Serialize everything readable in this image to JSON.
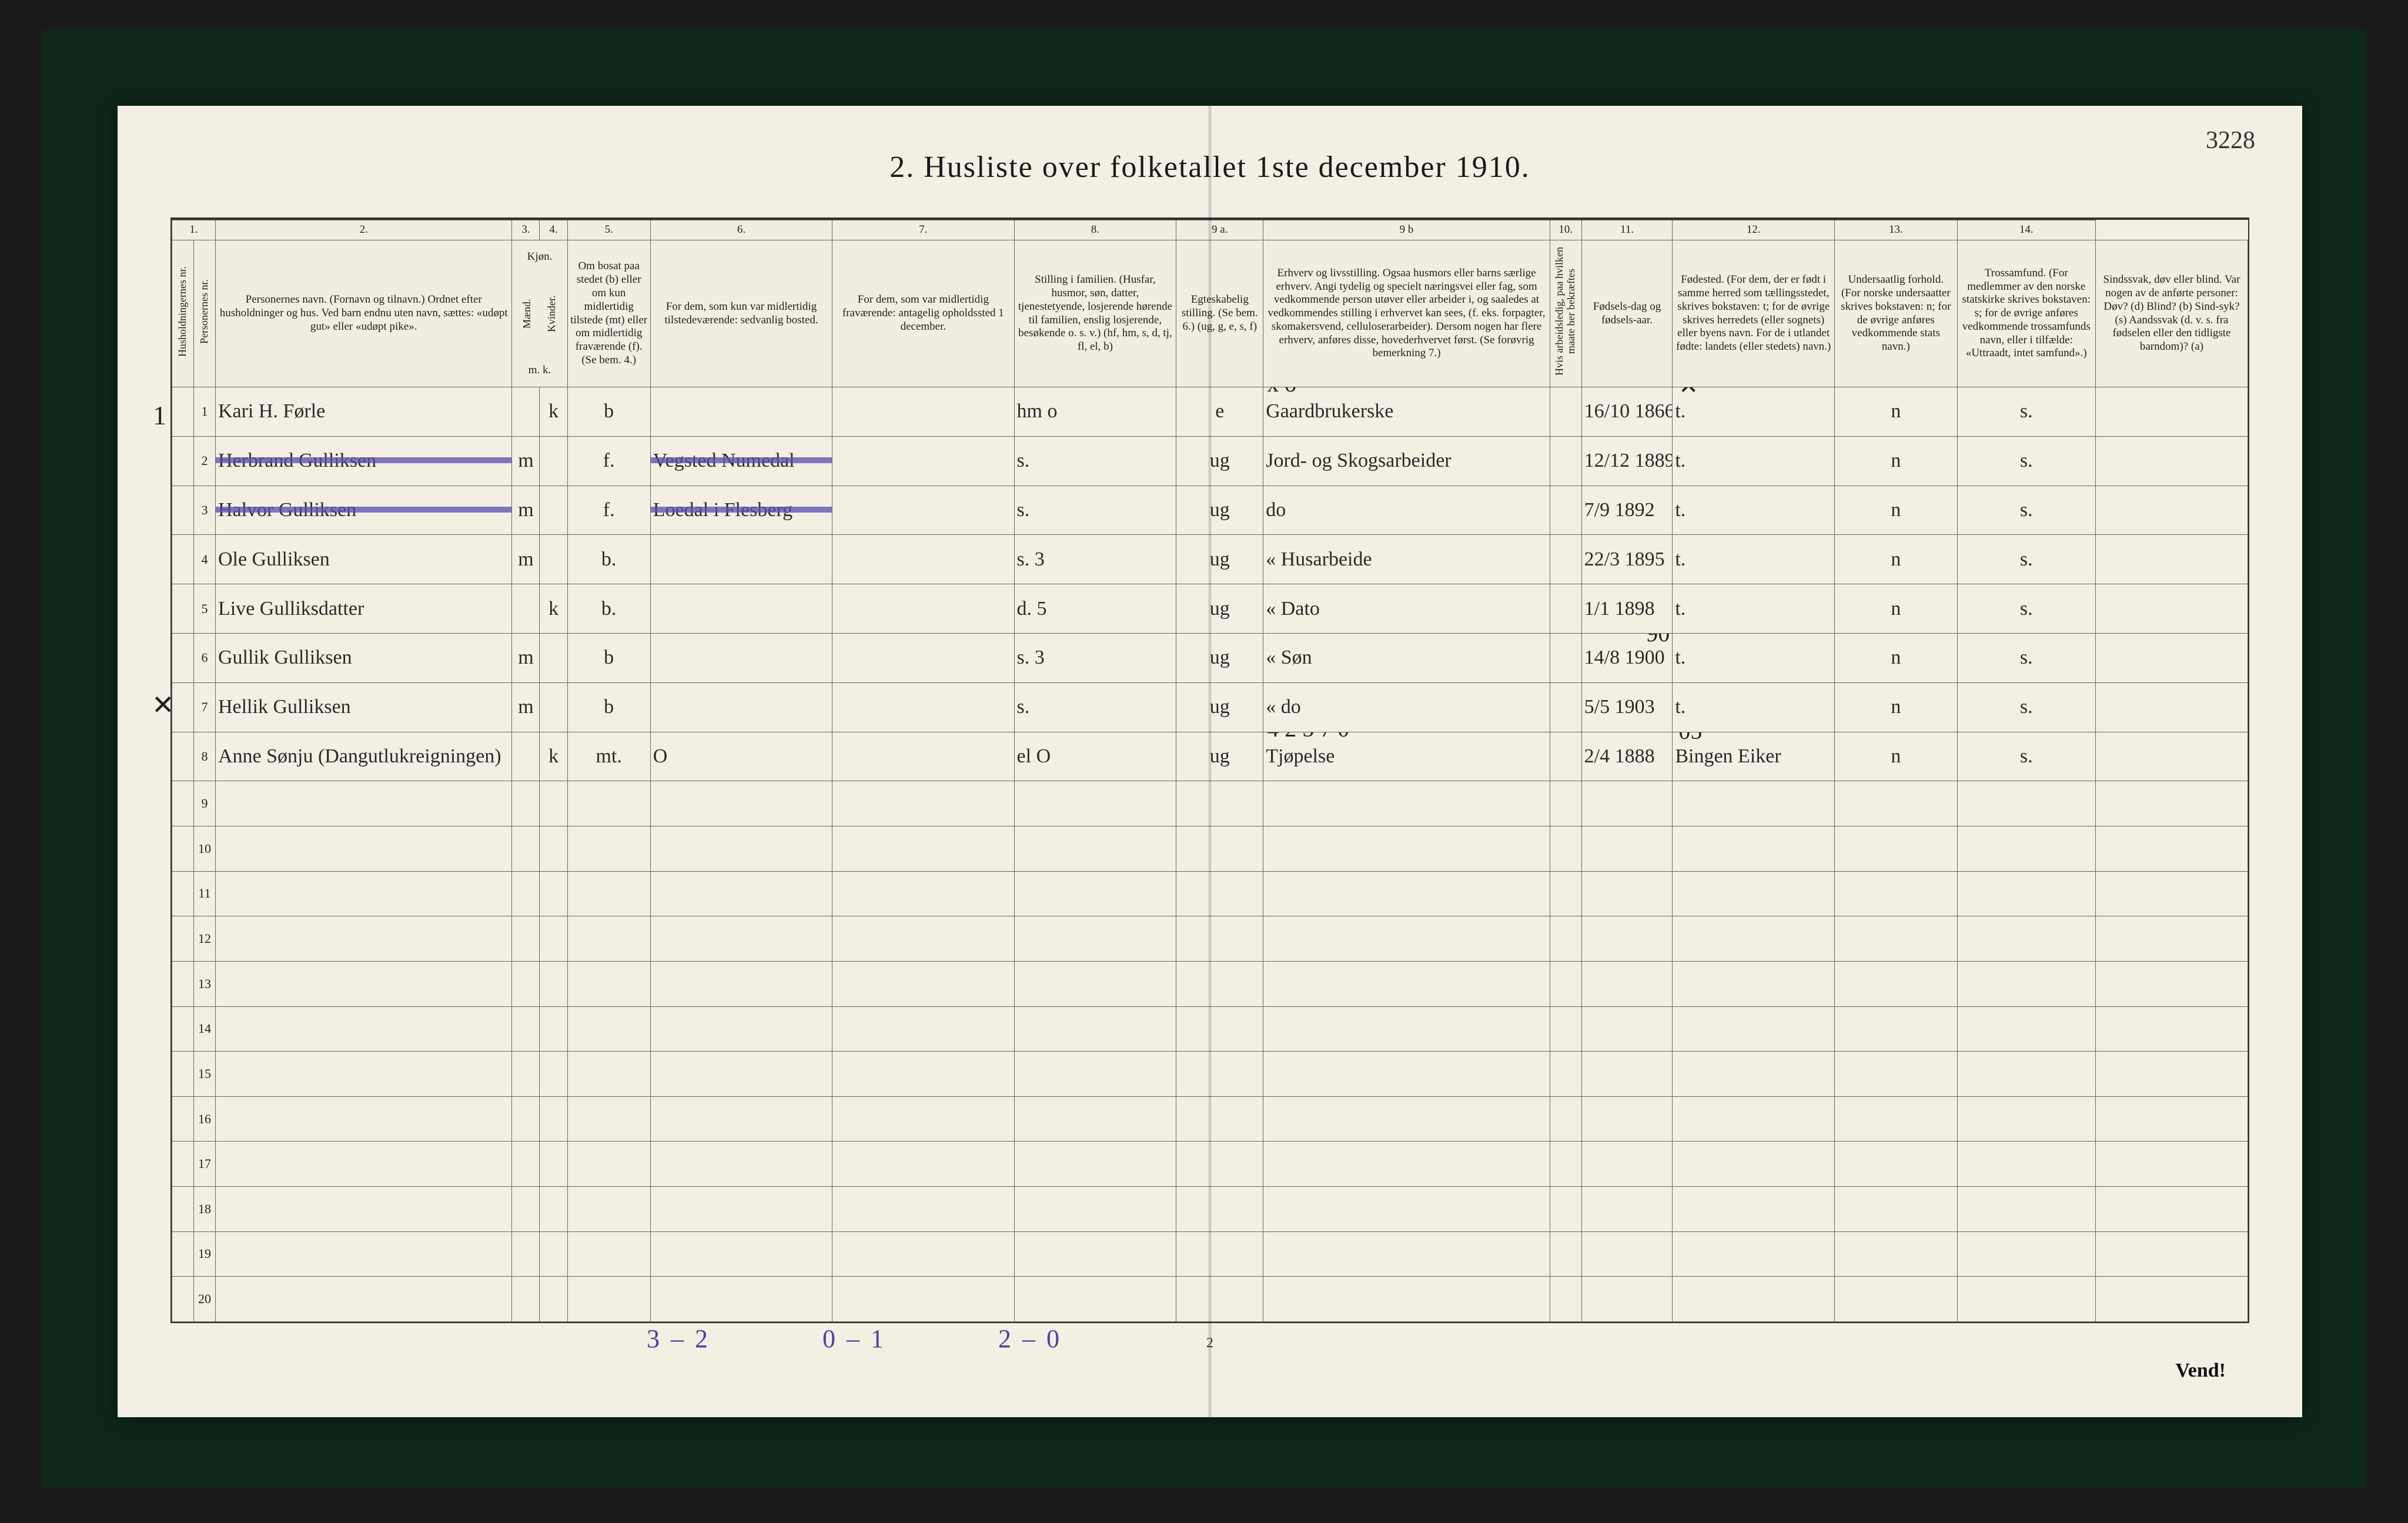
{
  "corner_number": "3228",
  "title": "2.  Husliste over folketallet 1ste december 1910.",
  "column_numbers": [
    "1.",
    "2.",
    "3.",
    "4.",
    "5.",
    "6.",
    "7.",
    "8.",
    "9 a.",
    "9 b",
    "10.",
    "11.",
    "12.",
    "13.",
    "14."
  ],
  "headers": {
    "c1a": "Husholdningernes nr.",
    "c1b": "Personernes nr.",
    "c2": "Personernes navn.\n(Fornavn og tilnavn.)\nOrdnet efter husholdninger og hus.\nVed barn endnu uten navn, sættes: «udøpt gut» eller «udøpt pike».",
    "c3": "Kjøn.",
    "c3a": "Mænd.",
    "c3b": "Kvinder.",
    "c3sub": "m.  k.",
    "c4": "Om bosat paa stedet (b) eller om kun midlertidig tilstede (mt) eller om midlertidig fraværende (f).\n(Se bem. 4.)",
    "c5": "For dem, som kun var midlertidig tilstedeværende:\nsedvanlig bosted.",
    "c6": "For dem, som var midlertidig fraværende:\nantagelig opholdssted 1 december.",
    "c7": "Stilling i familien.\n(Husfar, husmor, søn, datter, tjenestetyende, losjerende hørende til familien, enslig losjerende, besøkende o. s. v.)\n(hf, hm, s, d, tj, fl, el, b)",
    "c8": "Egteskabelig stilling.\n(Se bem. 6.)\n(ug, g, e, s, f)",
    "c9a": "Erhverv og livsstilling.\nOgsaa husmors eller barns særlige erhverv.\nAngi tydelig og specielt næringsvei eller fag, som vedkommende person utøver eller arbeider i, og saaledes at vedkommendes stilling i erhvervet kan sees, (f. eks. forpagter, skomakersvend, celluloserarbeider). Dersom nogen har flere erhverv, anføres disse, hovederhvervet først.\n(Se forøvrig bemerkning 7.)",
    "c9b": "Hvis arbeidsledig, paa hvilken maate her bekræftes",
    "c10": "Fødsels-dag og fødsels-aar.",
    "c11": "Fødested.\n(For dem, der er født i samme herred som tællingsstedet, skrives bokstaven: t; for de øvrige skrives herredets (eller sognets) eller byens navn. For de i utlandet fødte: landets (eller stedets) navn.)",
    "c12": "Undersaatlig forhold.\n(For norske undersaatter skrives bokstaven: n; for de øvrige anføres vedkommende stats navn.)",
    "c13": "Trossamfund.\n(For medlemmer av den norske statskirke skrives bokstaven: s; for de øvrige anføres vedkommende trossamfunds navn, eller i tilfælde: «Uttraadt, intet samfund».)",
    "c14": "Sindssvak, døv eller blind.\nVar nogen av de anførte personer:\nDøv? (d)\nBlind? (b)\nSind-syk? (s)\nAandssvak (d. v. s. fra fødselen eller den tidligste barndom)? (a)"
  },
  "col_widths": {
    "c1a": "1.1%",
    "c1b": "1.1%",
    "c2": "15%",
    "c3a": "1.4%",
    "c3b": "1.4%",
    "c4": "4.2%",
    "c5": "9.2%",
    "c6": "9.2%",
    "c7": "8.2%",
    "c8": "4.4%",
    "c9a": "14.5%",
    "c9b": "1.6%",
    "c10": "4.6%",
    "c11": "8.2%",
    "c12": "6.2%",
    "c13": "7.0%",
    "c14": "7.7%"
  },
  "margin_marks": {
    "left1": "1",
    "left8": "✕"
  },
  "rows": [
    {
      "n": "1",
      "name": "Kari H. Førle",
      "mk": "k",
      "bf": "b",
      "c5": "",
      "c6": "",
      "fam": "hm   o",
      "eg": "e",
      "erh": "Gaardbrukerske",
      "c9b": "",
      "dob": "16/10 1866",
      "birth": "t.",
      "c12": "n",
      "c13": "s.",
      "c14": "",
      "struck": false,
      "annot9": "x o",
      "annot11": "✕"
    },
    {
      "n": "2",
      "name": "Herbrand Gulliksen",
      "mk": "m",
      "bf": "f.",
      "c5": "Vegsted  Numedal",
      "c6": "",
      "fam": "s.",
      "eg": "ug",
      "erh": "Jord- og Skogsarbeider",
      "c9b": "",
      "dob": "12/12 1889",
      "birth": "t.",
      "c12": "n",
      "c13": "s.",
      "c14": "",
      "struck": true
    },
    {
      "n": "3",
      "name": "Halvor Gulliksen",
      "mk": "m",
      "bf": "f.",
      "c5": "Loedal i Flesberg",
      "c6": "",
      "fam": "s.",
      "eg": "ug",
      "erh": "do",
      "c9b": "",
      "dob": "7/9 1892",
      "birth": "t.",
      "c12": "n",
      "c13": "s.",
      "c14": "",
      "struck": true
    },
    {
      "n": "4",
      "name": "Ole Gulliksen",
      "mk": "m",
      "bf": "b.",
      "c5": "",
      "c6": "",
      "fam": "s.   3",
      "eg": "ug",
      "erh": "«  Husarbeide",
      "c9b": "",
      "dob": "22/3 1895",
      "birth": "t.",
      "c12": "n",
      "c13": "s.",
      "c14": "",
      "struck": false
    },
    {
      "n": "5",
      "name": "Live Gulliksdatter",
      "mk": "k",
      "bf": "b.",
      "c5": "",
      "c6": "",
      "fam": "d.   5",
      "eg": "ug",
      "erh": "«  Dato",
      "c9b": "",
      "dob": "1/1 1898",
      "birth": "t.",
      "c12": "n",
      "c13": "s.",
      "c14": "",
      "struck": false
    },
    {
      "n": "6",
      "name": "Gullik Gulliksen",
      "mk": "m",
      "bf": "b",
      "c5": "",
      "c6": "",
      "fam": "s.   3",
      "eg": "ug",
      "erh": "«  Søn",
      "c9b": "",
      "dob": "14/8 1900",
      "birth": "t.",
      "c12": "n",
      "c13": "s.",
      "c14": "",
      "struck": false,
      "annot10": "90"
    },
    {
      "n": "7",
      "name": "Hellik Gulliksen",
      "mk": "m",
      "bf": "b",
      "c5": "",
      "c6": "",
      "fam": "s.",
      "eg": "ug",
      "erh": "«  do",
      "c9b": "",
      "dob": "5/5 1903",
      "birth": "t.",
      "c12": "n",
      "c13": "s.",
      "c14": "",
      "struck": false
    },
    {
      "n": "8",
      "name": "Anne Sønju  (Dangutlukreigningen)",
      "mk": "k",
      "bf": "mt.",
      "c5": "O",
      "c6": "",
      "fam": "el   O",
      "eg": "ug",
      "erh": "Tjøpelse",
      "c9b": "",
      "dob": "2/4 1888",
      "birth": "Bingen Eiker",
      "c12": "n",
      "c13": "s.",
      "c14": "",
      "struck": false,
      "annot9": "4 2 5 7 0",
      "annot11": "05"
    }
  ],
  "empty_row_numbers": [
    "9",
    "10",
    "11",
    "12",
    "13",
    "14",
    "15",
    "16",
    "17",
    "18",
    "19",
    "20"
  ],
  "footer_tallies": [
    "3 – 2",
    "0 – 1",
    "2 – 0"
  ],
  "footer_tallies_color": "#4a3fa8",
  "foot_page_number": "2",
  "vend": "Vend!",
  "colors": {
    "paper": "#f3efe3",
    "ink": "#1a1a1a",
    "rule": "#666",
    "strike": "#5a4db0",
    "frame": "#0d2818"
  }
}
